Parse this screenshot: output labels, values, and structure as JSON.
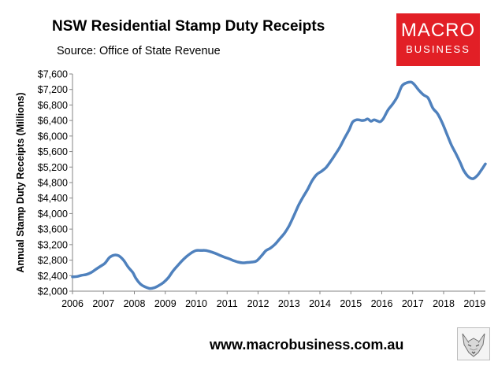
{
  "header": {
    "title": "NSW Residential Stamp Duty Receipts",
    "source": "Source: Office of State Revenue"
  },
  "logo": {
    "line1": "MACRO",
    "line2": "BUSINESS",
    "color": "#e21f26"
  },
  "footer": {
    "url": "www.macrobusiness.com.au",
    "icon": "fox-sketch-icon"
  },
  "chart_data": {
    "type": "line",
    "title": "NSW Residential Stamp Duty Receipts",
    "ylabel": "Annual Stamp Duty Receipts (Millions)",
    "xlabel": "",
    "xlim": [
      2006.0,
      2019.35
    ],
    "ylim": [
      2000,
      7600
    ],
    "y_ticks": [
      2000,
      2400,
      2800,
      3200,
      3600,
      4000,
      4400,
      4800,
      5200,
      5600,
      6000,
      6400,
      6800,
      7200,
      7600
    ],
    "y_tick_labels": [
      "$2,000",
      "$2,400",
      "$2,800",
      "$3,200",
      "$3,600",
      "$4,000",
      "$4,400",
      "$4,800",
      "$5,200",
      "$5,600",
      "$6,000",
      "$6,400",
      "$6,800",
      "$7,200",
      "$7,600"
    ],
    "x_ticks": [
      2006,
      2007,
      2008,
      2009,
      2010,
      2011,
      2012,
      2013,
      2014,
      2015,
      2016,
      2017,
      2018,
      2019
    ],
    "x_tick_labels": [
      "2006",
      "2007",
      "2008",
      "2009",
      "2010",
      "2011",
      "2012",
      "2013",
      "2014",
      "2015",
      "2016",
      "2017",
      "2018",
      "2019"
    ],
    "grid": false,
    "legend": "none",
    "line_color": "#4f81bd",
    "series": [
      {
        "x": [
          2006.0,
          2006.15,
          2006.3,
          2006.45,
          2006.6,
          2006.75,
          2006.9,
          2007.05,
          2007.2,
          2007.35,
          2007.5,
          2007.65,
          2007.8,
          2007.95,
          2008.05,
          2008.2,
          2008.35,
          2008.5,
          2008.65,
          2008.8,
          2008.95,
          2009.1,
          2009.25,
          2009.4,
          2009.55,
          2009.7,
          2009.85,
          2010.0,
          2010.15,
          2010.3,
          2010.45,
          2010.6,
          2010.75,
          2010.9,
          2011.05,
          2011.2,
          2011.35,
          2011.5,
          2011.65,
          2011.8,
          2011.95,
          2012.1,
          2012.25,
          2012.4,
          2012.55,
          2012.7,
          2012.85,
          2013.0,
          2013.15,
          2013.3,
          2013.45,
          2013.6,
          2013.75,
          2013.9,
          2014.05,
          2014.2,
          2014.35,
          2014.5,
          2014.65,
          2014.8,
          2014.95,
          2015.05,
          2015.15,
          2015.25,
          2015.35,
          2015.45,
          2015.55,
          2015.65,
          2015.75,
          2015.85,
          2015.95,
          2016.05,
          2016.2,
          2016.35,
          2016.5,
          2016.65,
          2016.8,
          2016.95,
          2017.05,
          2017.2,
          2017.35,
          2017.5,
          2017.65,
          2017.8,
          2017.95,
          2018.1,
          2018.25,
          2018.4,
          2018.55,
          2018.65,
          2018.8,
          2018.95,
          2019.1,
          2019.25,
          2019.35
        ],
        "values": [
          2370,
          2380,
          2410,
          2430,
          2480,
          2560,
          2640,
          2720,
          2870,
          2930,
          2910,
          2800,
          2620,
          2480,
          2330,
          2180,
          2110,
          2070,
          2090,
          2150,
          2230,
          2350,
          2520,
          2660,
          2790,
          2900,
          2990,
          3050,
          3050,
          3050,
          3020,
          2980,
          2930,
          2880,
          2840,
          2790,
          2750,
          2730,
          2740,
          2750,
          2780,
          2900,
          3040,
          3110,
          3210,
          3350,
          3490,
          3680,
          3930,
          4200,
          4420,
          4620,
          4850,
          5010,
          5090,
          5190,
          5350,
          5530,
          5720,
          5950,
          6170,
          6350,
          6410,
          6420,
          6400,
          6410,
          6440,
          6380,
          6420,
          6390,
          6370,
          6450,
          6670,
          6820,
          7010,
          7290,
          7370,
          7390,
          7330,
          7180,
          7060,
          6980,
          6720,
          6580,
          6350,
          6060,
          5770,
          5540,
          5290,
          5110,
          4950,
          4900,
          4990,
          5160,
          5280
        ]
      }
    ]
  }
}
